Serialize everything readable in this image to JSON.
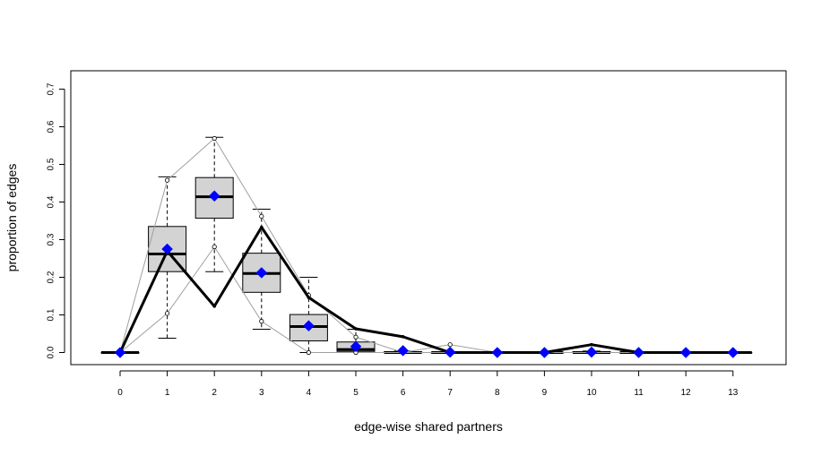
{
  "chart_data": {
    "type": "box",
    "xlabel": "edge-wise shared partners",
    "ylabel": "proportion of edges",
    "x": [
      0,
      1,
      2,
      3,
      4,
      5,
      6,
      7,
      8,
      9,
      10,
      11,
      12,
      13
    ],
    "xlim": [
      -0.5,
      13.5
    ],
    "ylim": [
      0,
      0.7
    ],
    "y_ticks": [
      0.0,
      0.1,
      0.2,
      0.3,
      0.4,
      0.5,
      0.6,
      0.7
    ],
    "y_tick_labels": [
      "0.0",
      "0.1",
      "0.2",
      "0.3",
      "0.4",
      "0.5",
      "0.6",
      "0.7"
    ],
    "grid": false,
    "legend": "none",
    "boxes": [
      {
        "x": 0,
        "whisker_low": 0,
        "q1": 0,
        "median": 0,
        "q3": 0,
        "whisker_high": 0
      },
      {
        "x": 1,
        "whisker_low": 0.038,
        "q1": 0.215,
        "median": 0.262,
        "q3": 0.335,
        "whisker_high": 0.467
      },
      {
        "x": 2,
        "whisker_low": 0.215,
        "q1": 0.357,
        "median": 0.414,
        "q3": 0.465,
        "whisker_high": 0.572
      },
      {
        "x": 3,
        "whisker_low": 0.062,
        "q1": 0.16,
        "median": 0.21,
        "q3": 0.264,
        "whisker_high": 0.381
      },
      {
        "x": 4,
        "whisker_low": 0.0,
        "q1": 0.031,
        "median": 0.069,
        "q3": 0.101,
        "whisker_high": 0.2
      },
      {
        "x": 5,
        "whisker_low": 0.0,
        "q1": 0.003,
        "median": 0.008,
        "q3": 0.028,
        "whisker_high": 0.062
      },
      {
        "x": 6,
        "whisker_low": 0.0,
        "q1": 0.0,
        "median": 0.0,
        "q3": 0.002,
        "whisker_high": 0.004
      },
      {
        "x": 7,
        "whisker_low": 0.0,
        "q1": 0.0,
        "median": 0.0,
        "q3": 0.0,
        "whisker_high": 0.0
      },
      {
        "x": 8,
        "whisker_low": 0.0,
        "q1": 0.0,
        "median": 0.0,
        "q3": 0.0,
        "whisker_high": 0.0
      },
      {
        "x": 9,
        "whisker_low": 0.0,
        "q1": 0.0,
        "median": 0.0,
        "q3": 0.0,
        "whisker_high": 0.0
      },
      {
        "x": 10,
        "whisker_low": 0.0,
        "q1": 0.0,
        "median": 0.0,
        "q3": 0.002,
        "whisker_high": 0.004
      },
      {
        "x": 11,
        "whisker_low": 0.0,
        "q1": 0.0,
        "median": 0.0,
        "q3": 0.0,
        "whisker_high": 0.0
      },
      {
        "x": 12,
        "whisker_low": 0.0,
        "q1": 0.0,
        "median": 0.0,
        "q3": 0.0,
        "whisker_high": 0.0
      },
      {
        "x": 13,
        "whisker_low": 0.0,
        "q1": 0.0,
        "median": 0.0,
        "q3": 0.0,
        "whisker_high": 0.0
      }
    ],
    "series": [
      {
        "role": "observed",
        "style": "thick-black-line",
        "color": "#000000",
        "values": [
          0,
          0.27,
          0.123,
          0.333,
          0.146,
          0.063,
          0.042,
          0,
          0,
          0,
          0.021,
          0,
          0,
          0
        ]
      },
      {
        "role": "mean",
        "style": "blue-diamond",
        "color": "#0000ff",
        "values": [
          0,
          0.275,
          0.416,
          0.212,
          0.071,
          0.016,
          0.005,
          0.001,
          0,
          0,
          0.001,
          0,
          0,
          0
        ]
      },
      {
        "role": "upper",
        "style": "gray-line-open-circle",
        "color": "#a0a0a0",
        "values": [
          0,
          0.458,
          0.569,
          0.362,
          0.152,
          0.041,
          0.0,
          0.021,
          0,
          0,
          0,
          0,
          0,
          0
        ]
      },
      {
        "role": "lower",
        "style": "gray-line-open-circle",
        "color": "#a0a0a0",
        "values": [
          0,
          0.104,
          0.281,
          0.083,
          0.0,
          0.0,
          0.0,
          0.0,
          0,
          0,
          0,
          0,
          0,
          0
        ]
      }
    ],
    "colors": {
      "box_fill": "#d3d3d3",
      "box_stroke": "#000000",
      "gray_line": "#a0a0a0",
      "mean_marker": "#0000ff"
    }
  }
}
